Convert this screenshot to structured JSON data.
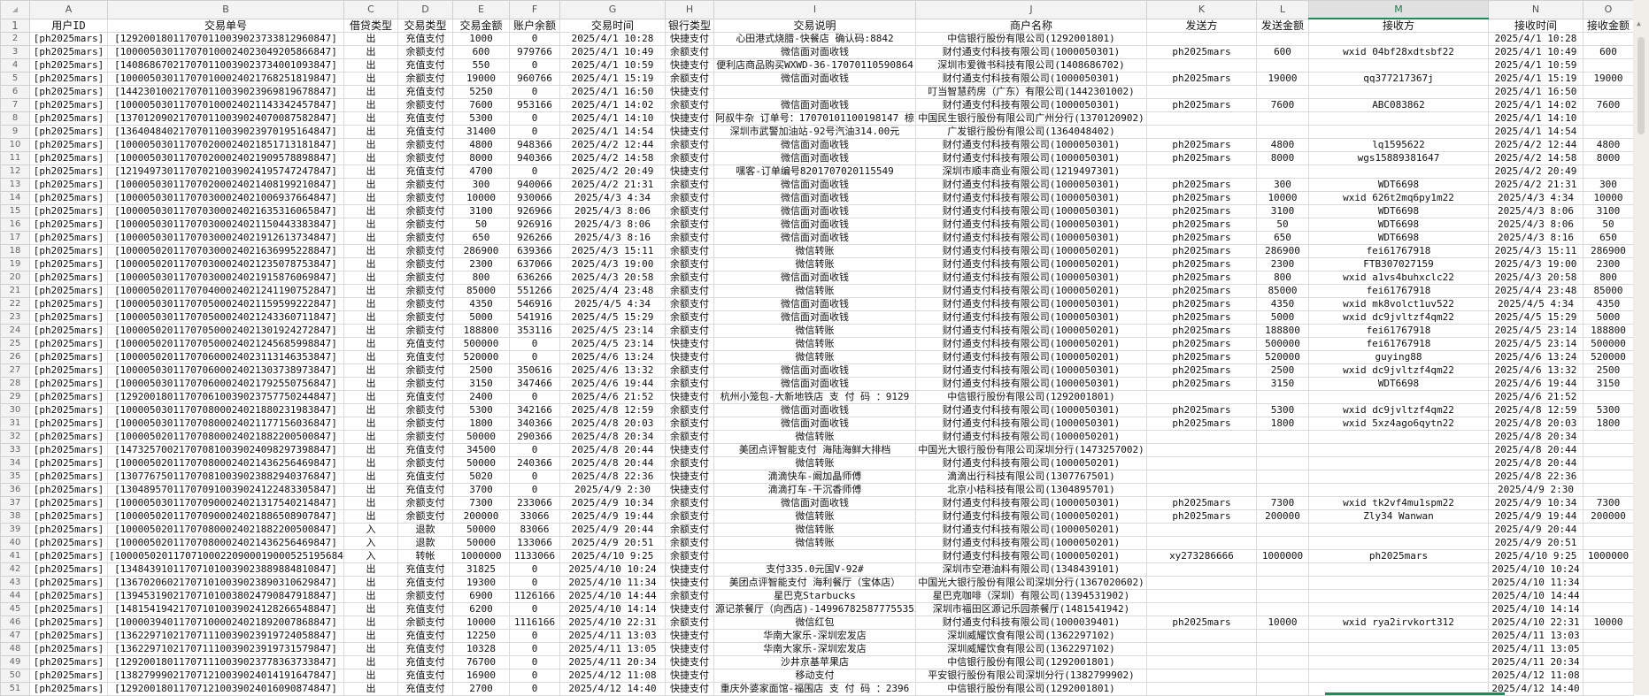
{
  "sheet": {
    "column_letters": [
      "A",
      "B",
      "C",
      "D",
      "E",
      "F",
      "G",
      "H",
      "I",
      "J",
      "K",
      "L",
      "M",
      "N",
      "O"
    ],
    "selected_column": "M",
    "accent_color": "#1e8b5a",
    "corner_icon": "select-all-triangle-icon",
    "headers": [
      "用户ID",
      "交易单号",
      "借贷类型",
      "交易类型",
      "交易金额",
      "账户余额",
      "交易时间",
      "银行类型",
      "交易说明",
      "商户名称",
      "发送方",
      "发送金额",
      "接收方",
      "接收时间",
      "接收金额"
    ],
    "rows": [
      [
        "[ph2025mars]",
        "[129200180117070110039023733812960847]",
        "出",
        "充值支付",
        "1000",
        "0",
        "2025/4/1 10:28",
        "快捷支付",
        "心田港式烧腊-快餐店 确认码:8842",
        "中信银行股份有限公司(1292001801)",
        "",
        "",
        "",
        "2025/4/1 10:28",
        ""
      ],
      [
        "[ph2025mars]",
        "[100005030117070100024023049205866847]",
        "出",
        "余额支付",
        "600",
        "979766",
        "2025/4/1 10:49",
        "余额支付",
        "微信面对面收钱",
        "财付通支付科技有限公司(1000050301)",
        "ph2025mars",
        "600",
        "wxid 04bf28xdtsbf22",
        "2025/4/1 10:49",
        "600"
      ],
      [
        "[ph2025mars]",
        "[140868670217070110039023734001093847]",
        "出",
        "充值支付",
        "550",
        "0",
        "2025/4/1 10:59",
        "快捷支付",
        "便利店商品购买WXWD-36-17070110590864",
        "深圳市爱微书科技有限公司(1408686702)",
        "",
        "",
        "",
        "2025/4/1 10:59",
        ""
      ],
      [
        "[ph2025mars]",
        "[100005030117070100024021768251819847]",
        "出",
        "余额支付",
        "19000",
        "960766",
        "2025/4/1 15:19",
        "余额支付",
        "微信面对面收钱",
        "财付通支付科技有限公司(1000050301)",
        "ph2025mars",
        "19000",
        "qq377217367j",
        "2025/4/1 15:19",
        "19000"
      ],
      [
        "[ph2025mars]",
        "[144230100217070110039023969819678847]",
        "出",
        "充值支付",
        "5250",
        "0",
        "2025/4/1 16:50",
        "快捷支付",
        "",
        "叮当智慧药房（广东）有限公司(1442301002)",
        "",
        "",
        "",
        "2025/4/1 16:50",
        ""
      ],
      [
        "[ph2025mars]",
        "[100005030117070100024021143342457847]",
        "出",
        "余额支付",
        "7600",
        "953166",
        "2025/4/1 14:02",
        "余额支付",
        "微信面对面收钱",
        "财付通支付科技有限公司(1000050301)",
        "ph2025mars",
        "7600",
        "ABC083862",
        "2025/4/1 14:02",
        "7600"
      ],
      [
        "[ph2025mars]",
        "[137012090217070110039024070087582847]",
        "出",
        "充值支付",
        "5300",
        "0",
        "2025/4/1 14:10",
        "快捷支付",
        "阿叔牛杂 订单号：17070101100198147 椋",
        "中国民生银行股份有限公司广州分行(1370120902)",
        "",
        "",
        "",
        "2025/4/1 14:10",
        ""
      ],
      [
        "[ph2025mars]",
        "[136404840217070110039023970195164847]",
        "出",
        "充值支付",
        "31400",
        "0",
        "2025/4/1 14:54",
        "快捷支付",
        "深圳市武警加油站-92号汽油314.00元",
        "广发银行股份有限公司(1364048402)",
        "",
        "",
        "",
        "2025/4/1 14:54",
        ""
      ],
      [
        "[ph2025mars]",
        "[100005030117070200024021851713181847]",
        "出",
        "余额支付",
        "4800",
        "948366",
        "2025/4/2 12:44",
        "余额支付",
        "微信面对面收钱",
        "财付通支付科技有限公司(1000050301)",
        "ph2025mars",
        "4800",
        "lq1595622",
        "2025/4/2 12:44",
        "4800"
      ],
      [
        "[ph2025mars]",
        "[100005030117070200024021909578898847]",
        "出",
        "余额支付",
        "8000",
        "940366",
        "2025/4/2 14:58",
        "余额支付",
        "微信面对面收钱",
        "财付通支付科技有限公司(1000050301)",
        "ph2025mars",
        "8000",
        "wgs15889381647",
        "2025/4/2 14:58",
        "8000"
      ],
      [
        "[ph2025mars]",
        "[121949730117070210039024195747247847]",
        "出",
        "充值支付",
        "4700",
        "0",
        "2025/4/2 20:49",
        "快捷支付",
        "嘿客-订单编号8201707020115549",
        "深圳市顺丰商业有限公司(1219497301)",
        "",
        "",
        "",
        "2025/4/2 20:49",
        ""
      ],
      [
        "[ph2025mars]",
        "[100005030117070200024021408199210847]",
        "出",
        "余额支付",
        "300",
        "940066",
        "2025/4/2 21:31",
        "余额支付",
        "微信面对面收钱",
        "财付通支付科技有限公司(1000050301)",
        "ph2025mars",
        "300",
        "WDT6698",
        "2025/4/2 21:31",
        "300"
      ],
      [
        "[ph2025mars]",
        "[100005030117070300024021006937664847]",
        "出",
        "余额支付",
        "10000",
        "930066",
        "2025/4/3 4:34",
        "余额支付",
        "微信面对面收钱",
        "财付通支付科技有限公司(1000050301)",
        "ph2025mars",
        "10000",
        "wxid 626t2mq6py1m22",
        "2025/4/3 4:34",
        "10000"
      ],
      [
        "[ph2025mars]",
        "[100005030117070300024021635316065847]",
        "出",
        "余额支付",
        "3100",
        "926966",
        "2025/4/3 8:06",
        "余额支付",
        "微信面对面收钱",
        "财付通支付科技有限公司(1000050301)",
        "ph2025mars",
        "3100",
        "WDT6698",
        "2025/4/3 8:06",
        "3100"
      ],
      [
        "[ph2025mars]",
        "[100005030117070300024021150443383847]",
        "出",
        "余额支付",
        "50",
        "926916",
        "2025/4/3 8:06",
        "余额支付",
        "微信面对面收钱",
        "财付通支付科技有限公司(1000050301)",
        "ph2025mars",
        "50",
        "WDT6698",
        "2025/4/3 8:06",
        "50"
      ],
      [
        "[ph2025mars]",
        "[100005030117070300024021912613734847]",
        "出",
        "余额支付",
        "650",
        "926266",
        "2025/4/3 8:16",
        "余额支付",
        "微信面对面收钱",
        "财付通支付科技有限公司(1000050301)",
        "ph2025mars",
        "650",
        "WDT6698",
        "2025/4/3 8:16",
        "650"
      ],
      [
        "[ph2025mars]",
        "[100005020117070300024021636995228847]",
        "出",
        "余额支付",
        "286900",
        "639366",
        "2025/4/3 15:11",
        "余额支付",
        "微信转账",
        "财付通支付科技有限公司(1000050201)",
        "ph2025mars",
        "286900",
        "fei61767918",
        "2025/4/3 15:11",
        "286900"
      ],
      [
        "[ph2025mars]",
        "[100005020117070300024021235078753847]",
        "出",
        "余额支付",
        "2300",
        "637066",
        "2025/4/3 19:00",
        "余额支付",
        "微信转账",
        "财付通支付科技有限公司(1000050201)",
        "ph2025mars",
        "2300",
        "FTB307027159",
        "2025/4/3 19:00",
        "2300"
      ],
      [
        "[ph2025mars]",
        "[100005030117070300024021915876069847]",
        "出",
        "余额支付",
        "800",
        "636266",
        "2025/4/3 20:58",
        "余额支付",
        "微信面对面收钱",
        "财付通支付科技有限公司(1000050301)",
        "ph2025mars",
        "800",
        "wxid a1vs4buhxclc22",
        "2025/4/3 20:58",
        "800"
      ],
      [
        "[ph2025mars]",
        "[100005020117070400024021241190752847]",
        "出",
        "余额支付",
        "85000",
        "551266",
        "2025/4/4 23:48",
        "余额支付",
        "微信转账",
        "财付通支付科技有限公司(1000050201)",
        "ph2025mars",
        "85000",
        "fei61767918",
        "2025/4/4 23:48",
        "85000"
      ],
      [
        "[ph2025mars]",
        "[100005030117070500024021159599222847]",
        "出",
        "余额支付",
        "4350",
        "546916",
        "2025/4/5 4:34",
        "余额支付",
        "微信面对面收钱",
        "财付通支付科技有限公司(1000050301)",
        "ph2025mars",
        "4350",
        "wxid mk8volct1uv522",
        "2025/4/5 4:34",
        "4350"
      ],
      [
        "[ph2025mars]",
        "[100005030117070500024021243360711847]",
        "出",
        "余额支付",
        "5000",
        "541916",
        "2025/4/5 15:29",
        "余额支付",
        "微信面对面收钱",
        "财付通支付科技有限公司(1000050301)",
        "ph2025mars",
        "5000",
        "wxid dc9jvltzf4qm22",
        "2025/4/5 15:29",
        "5000"
      ],
      [
        "[ph2025mars]",
        "[100005020117070500024021301924272847]",
        "出",
        "余额支付",
        "188800",
        "353116",
        "2025/4/5 23:14",
        "余额支付",
        "微信转账",
        "财付通支付科技有限公司(1000050201)",
        "ph2025mars",
        "188800",
        "fei61767918",
        "2025/4/5 23:14",
        "188800"
      ],
      [
        "[ph2025mars]",
        "[100005020117070500024021245685998847]",
        "出",
        "充值支付",
        "500000",
        "0",
        "2025/4/5 23:14",
        "快捷支付",
        "微信转账",
        "财付通支付科技有限公司(1000050201)",
        "ph2025mars",
        "500000",
        "fei61767918",
        "2025/4/5 23:14",
        "500000"
      ],
      [
        "[ph2025mars]",
        "[100005020117070600024023113146353847]",
        "出",
        "充值支付",
        "520000",
        "0",
        "2025/4/6 13:24",
        "快捷支付",
        "微信转账",
        "财付通支付科技有限公司(1000050201)",
        "ph2025mars",
        "520000",
        "guying88",
        "2025/4/6 13:24",
        "520000"
      ],
      [
        "[ph2025mars]",
        "[100005030117070600024021303738973847]",
        "出",
        "余额支付",
        "2500",
        "350616",
        "2025/4/6 13:32",
        "余额支付",
        "微信面对面收钱",
        "财付通支付科技有限公司(1000050301)",
        "ph2025mars",
        "2500",
        "wxid dc9jvltzf4qm22",
        "2025/4/6 13:32",
        "2500"
      ],
      [
        "[ph2025mars]",
        "[100005030117070600024021792550756847]",
        "出",
        "余额支付",
        "3150",
        "347466",
        "2025/4/6 19:44",
        "余额支付",
        "微信面对面收钱",
        "财付通支付科技有限公司(1000050301)",
        "ph2025mars",
        "3150",
        "WDT6698",
        "2025/4/6 19:44",
        "3150"
      ],
      [
        "[ph2025mars]",
        "[129200180117070610039023757750244847]",
        "出",
        "充值支付",
        "2400",
        "0",
        "2025/4/6 21:52",
        "快捷支付",
        "杭州小笼包-大新地铁店 支 付 码 ：9129",
        "中信银行股份有限公司(1292001801)",
        "",
        "",
        "",
        "2025/4/6 21:52",
        ""
      ],
      [
        "[ph2025mars]",
        "[100005030117070800024021880231983847]",
        "出",
        "余额支付",
        "5300",
        "342166",
        "2025/4/8 12:59",
        "余额支付",
        "微信面对面收钱",
        "财付通支付科技有限公司(1000050301)",
        "ph2025mars",
        "5300",
        "wxid dc9jvltzf4qm22",
        "2025/4/8 12:59",
        "5300"
      ],
      [
        "[ph2025mars]",
        "[100005030117070800024021177156036847]",
        "出",
        "余额支付",
        "1800",
        "340366",
        "2025/4/8 20:03",
        "余额支付",
        "微信面对面收钱",
        "财付通支付科技有限公司(1000050301)",
        "ph2025mars",
        "1800",
        "wxid 5xz4ago6qytn22",
        "2025/4/8 20:03",
        "1800"
      ],
      [
        "[ph2025mars]",
        "[100005020117070800024021882200500847]",
        "出",
        "余额支付",
        "50000",
        "290366",
        "2025/4/8 20:34",
        "余额支付",
        "微信转账",
        "财付通支付科技有限公司(1000050201)",
        "",
        "",
        "",
        "2025/4/8 20:34",
        ""
      ],
      [
        "[ph2025mars]",
        "[147325700217070810039024098297398847]",
        "出",
        "充值支付",
        "34500",
        "0",
        "2025/4/8 20:44",
        "快捷支付",
        "美团点评智能支付 海陆海鲜大排档",
        "中国光大银行股份有限公司深圳分行(1473257002)",
        "",
        "",
        "",
        "2025/4/8 20:44",
        ""
      ],
      [
        "[ph2025mars]",
        "[100005020117070800024021436256469847]",
        "出",
        "余额支付",
        "50000",
        "240366",
        "2025/4/8 20:44",
        "余额支付",
        "微信转账",
        "财付通支付科技有限公司(1000050201)",
        "",
        "",
        "",
        "2025/4/8 20:44",
        ""
      ],
      [
        "[ph2025mars]",
        "[130776750117070810039023882940376847]",
        "出",
        "充值支付",
        "5020",
        "0",
        "2025/4/8 22:36",
        "快捷支付",
        "滴滴快车-阚加晶师傅",
        "滴滴出行科技有限公司(1307767501)",
        "",
        "",
        "",
        "2025/4/8 22:36",
        ""
      ],
      [
        "[ph2025mars]",
        "[130489570117070910039024122483305847]",
        "出",
        "充值支付",
        "3700",
        "0",
        "2025/4/9 2:30",
        "快捷支付",
        "滴滴打车-干沉香师傅",
        "北京小桔科技有限公司(1304895701)",
        "",
        "",
        "",
        "2025/4/9 2:30",
        ""
      ],
      [
        "[ph2025mars]",
        "[100005030117070900024021317540214847]",
        "出",
        "余额支付",
        "7300",
        "233066",
        "2025/4/9 10:34",
        "余额支付",
        "微信面对面收钱",
        "财付通支付科技有限公司(1000050301)",
        "ph2025mars",
        "7300",
        "wxid tk2vf4mu1spm22",
        "2025/4/9 10:34",
        "7300"
      ],
      [
        "[ph2025mars]",
        "[100005020117070900024021886508907847]",
        "出",
        "余额支付",
        "200000",
        "33066",
        "2025/4/9 19:44",
        "余额支付",
        "微信转账",
        "财付通支付科技有限公司(1000050201)",
        "ph2025mars",
        "200000",
        "Zly34 Wanwan",
        "2025/4/9 19:44",
        "200000"
      ],
      [
        "[ph2025mars]",
        "[100005020117070800024021882200500847]",
        "入",
        "退款",
        "50000",
        "83066",
        "2025/4/9 20:44",
        "余额支付",
        "微信转账",
        "财付通支付科技有限公司(1000050201)",
        "",
        "",
        "",
        "2025/4/9 20:44",
        ""
      ],
      [
        "[ph2025mars]",
        "[100005020117070800024021436256469847]",
        "入",
        "退款",
        "50000",
        "133066",
        "2025/4/9 20:51",
        "余额支付",
        "微信转账",
        "财付通支付科技有限公司(1000050201)",
        "",
        "",
        "",
        "2025/4/9 20:51",
        ""
      ],
      [
        "[ph2025mars]",
        "[1000050201170710002209000190005251956847]",
        "入",
        "转帐",
        "1000000",
        "1133066",
        "2025/4/10 9:25",
        "余额支付",
        "",
        "财付通支付科技有限公司(1000050201)",
        "xy273286666",
        "1000000",
        "ph2025mars",
        "2025/4/10 9:25",
        "1000000"
      ],
      [
        "[ph2025mars]",
        "[134843910117071010039023889884810847]",
        "出",
        "充值支付",
        "31825",
        "0",
        "2025/4/10 10:24",
        "快捷支付",
        "支付335.0元国V-92#",
        "深圳市空港油料有限公司(1348439101)",
        "",
        "",
        "",
        "2025/4/10 10:24",
        ""
      ],
      [
        "[ph2025mars]",
        "[136702060217071010039023890310629847]",
        "出",
        "充值支付",
        "19300",
        "0",
        "2025/4/10 11:34",
        "快捷支付",
        "美团点评智能支付 海利餐厅（宝体店）",
        "中国光大银行股份有限公司深圳分行(1367020602)",
        "",
        "",
        "",
        "2025/4/10 11:34",
        ""
      ],
      [
        "[ph2025mars]",
        "[139453190217071010038024790847918847]",
        "出",
        "余额支付",
        "6900",
        "1126166",
        "2025/4/10 14:44",
        "余额支付",
        "星巴克Starbucks",
        "星巴克咖啡（深圳）有限公司(1394531902)",
        "",
        "",
        "",
        "2025/4/10 14:44",
        ""
      ],
      [
        "[ph2025mars]",
        "[148154194217071010039024128266548847]",
        "出",
        "充值支付",
        "6200",
        "0",
        "2025/4/10 14:14",
        "快捷支付",
        "源记茶餐厅（向西店)-149967825877755352",
        "深圳市福田区源记乐园茶餐厅(1481541942)",
        "",
        "",
        "",
        "2025/4/10 14:14",
        ""
      ],
      [
        "[ph2025mars]",
        "[100003940117071000024021892007868847]",
        "出",
        "余额支付",
        "10000",
        "1116166",
        "2025/4/10 22:31",
        "余额支付",
        "微信红包",
        "财付通支付科技有限公司(1000039401)",
        "ph2025mars",
        "10000",
        "wxid rya2irvkort312",
        "2025/4/10 22:31",
        "10000"
      ],
      [
        "[ph2025mars]",
        "[136229710217071110039023919724058847]",
        "出",
        "充值支付",
        "12250",
        "0",
        "2025/4/11 13:03",
        "快捷支付",
        "华南大家乐-深圳宏发店",
        "深圳威耀饮食有限公司(1362297102)",
        "",
        "",
        "",
        "2025/4/11 13:03",
        ""
      ],
      [
        "[ph2025mars]",
        "[136229710217071110039023919731579847]",
        "出",
        "充值支付",
        "10328",
        "0",
        "2025/4/11 13:05",
        "快捷支付",
        "华南大家乐-深圳宏发店",
        "深圳威耀饮食有限公司(1362297102)",
        "",
        "",
        "",
        "2025/4/11 13:05",
        ""
      ],
      [
        "[ph2025mars]",
        "[129200180117071110039023778363733847]",
        "出",
        "充值支付",
        "76700",
        "0",
        "2025/4/11 20:34",
        "快捷支付",
        "沙井京基苹果店",
        "中信银行股份有限公司(1292001801)",
        "",
        "",
        "",
        "2025/4/11 20:34",
        ""
      ],
      [
        "[ph2025mars]",
        "[138279990217071210039024014191647847]",
        "出",
        "充值支付",
        "16900",
        "0",
        "2025/4/12 11:08",
        "快捷支付",
        "移动支付",
        "平安银行股份有限公司深圳分行(1382799902)",
        "",
        "",
        "",
        "2025/4/12 11:08",
        ""
      ],
      [
        "[ph2025mars]",
        "[129200180117071210039024016090874847]",
        "出",
        "充值支付",
        "2700",
        "0",
        "2025/4/12 14:40",
        "快捷支付",
        "重庆外婆家面馆-福围店 支 付 码 ：2396",
        "中信银行股份有限公司(1292001801)",
        "",
        "",
        "",
        "2025/4/12 14:40",
        ""
      ]
    ]
  },
  "scrollbar": {
    "up_icon": "scroll-up-arrow-icon"
  }
}
